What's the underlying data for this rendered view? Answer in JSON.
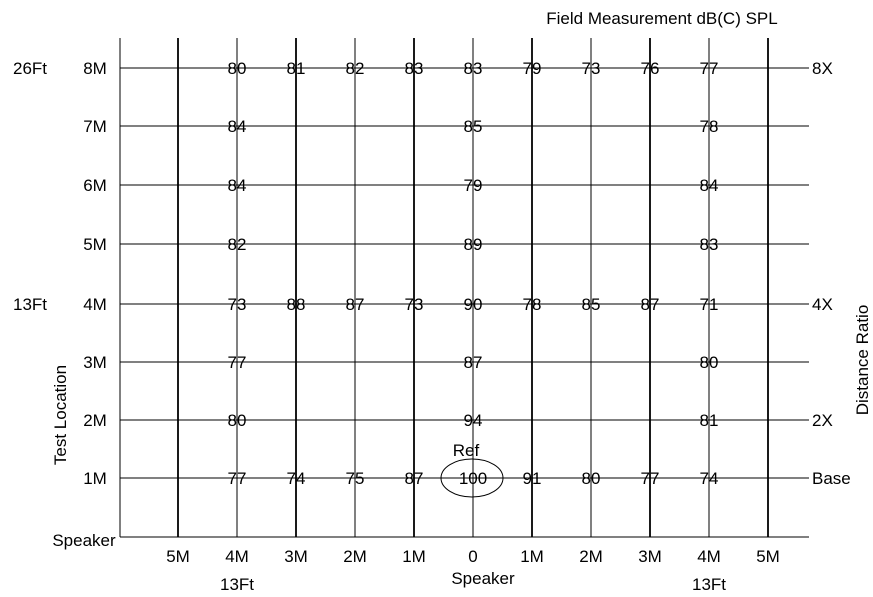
{
  "title": "Field Measurement dB(C) SPL",
  "y_axis_title": "Test Location",
  "right_axis_title": "Distance Ratio",
  "x_center_label": "Speaker",
  "origin_label": "Speaker",
  "reference_label": "Ref",
  "rows": [
    {
      "label": "8M",
      "feet": "26Ft",
      "ratio": "8X"
    },
    {
      "label": "7M",
      "feet": "",
      "ratio": ""
    },
    {
      "label": "6M",
      "feet": "",
      "ratio": ""
    },
    {
      "label": "5M",
      "feet": "",
      "ratio": ""
    },
    {
      "label": "4M",
      "feet": "13Ft",
      "ratio": "4X"
    },
    {
      "label": "3M",
      "feet": "",
      "ratio": ""
    },
    {
      "label": "2M",
      "feet": "",
      "ratio": "2X"
    },
    {
      "label": "1M",
      "feet": "",
      "ratio": "Base"
    }
  ],
  "columns": [
    {
      "label": "5M",
      "feet": ""
    },
    {
      "label": "4M",
      "feet": "13Ft"
    },
    {
      "label": "3M",
      "feet": ""
    },
    {
      "label": "2M",
      "feet": ""
    },
    {
      "label": "1M",
      "feet": ""
    },
    {
      "label": "0",
      "feet": ""
    },
    {
      "label": "1M",
      "feet": ""
    },
    {
      "label": "2M",
      "feet": ""
    },
    {
      "label": "3M",
      "feet": ""
    },
    {
      "label": "4M",
      "feet": "13Ft"
    },
    {
      "label": "5M",
      "feet": ""
    }
  ],
  "measurements": [
    {
      "row": 0,
      "col": 1,
      "value": "80"
    },
    {
      "row": 0,
      "col": 2,
      "value": "81"
    },
    {
      "row": 0,
      "col": 3,
      "value": "82"
    },
    {
      "row": 0,
      "col": 4,
      "value": "83"
    },
    {
      "row": 0,
      "col": 5,
      "value": "83"
    },
    {
      "row": 0,
      "col": 6,
      "value": "79"
    },
    {
      "row": 0,
      "col": 7,
      "value": "73"
    },
    {
      "row": 0,
      "col": 8,
      "value": "76"
    },
    {
      "row": 0,
      "col": 9,
      "value": "77"
    },
    {
      "row": 1,
      "col": 1,
      "value": "84"
    },
    {
      "row": 1,
      "col": 5,
      "value": "85"
    },
    {
      "row": 1,
      "col": 9,
      "value": "78"
    },
    {
      "row": 2,
      "col": 1,
      "value": "84"
    },
    {
      "row": 2,
      "col": 5,
      "value": "79"
    },
    {
      "row": 2,
      "col": 9,
      "value": "84"
    },
    {
      "row": 3,
      "col": 1,
      "value": "82"
    },
    {
      "row": 3,
      "col": 5,
      "value": "89"
    },
    {
      "row": 3,
      "col": 9,
      "value": "83"
    },
    {
      "row": 4,
      "col": 1,
      "value": "73"
    },
    {
      "row": 4,
      "col": 2,
      "value": "88"
    },
    {
      "row": 4,
      "col": 3,
      "value": "87"
    },
    {
      "row": 4,
      "col": 4,
      "value": "73"
    },
    {
      "row": 4,
      "col": 5,
      "value": "90"
    },
    {
      "row": 4,
      "col": 6,
      "value": "78"
    },
    {
      "row": 4,
      "col": 7,
      "value": "85"
    },
    {
      "row": 4,
      "col": 8,
      "value": "87"
    },
    {
      "row": 4,
      "col": 9,
      "value": "71"
    },
    {
      "row": 5,
      "col": 1,
      "value": "77"
    },
    {
      "row": 5,
      "col": 5,
      "value": "87"
    },
    {
      "row": 5,
      "col": 9,
      "value": "80"
    },
    {
      "row": 6,
      "col": 1,
      "value": "80"
    },
    {
      "row": 6,
      "col": 5,
      "value": "94"
    },
    {
      "row": 6,
      "col": 9,
      "value": "81"
    },
    {
      "row": 7,
      "col": 1,
      "value": "77"
    },
    {
      "row": 7,
      "col": 2,
      "value": "74"
    },
    {
      "row": 7,
      "col": 3,
      "value": "75"
    },
    {
      "row": 7,
      "col": 4,
      "value": "87"
    },
    {
      "row": 7,
      "col": 5,
      "value": "100",
      "reference": true
    },
    {
      "row": 7,
      "col": 6,
      "value": "91"
    },
    {
      "row": 7,
      "col": 7,
      "value": "80"
    },
    {
      "row": 7,
      "col": 8,
      "value": "77"
    },
    {
      "row": 7,
      "col": 9,
      "value": "74"
    }
  ]
}
